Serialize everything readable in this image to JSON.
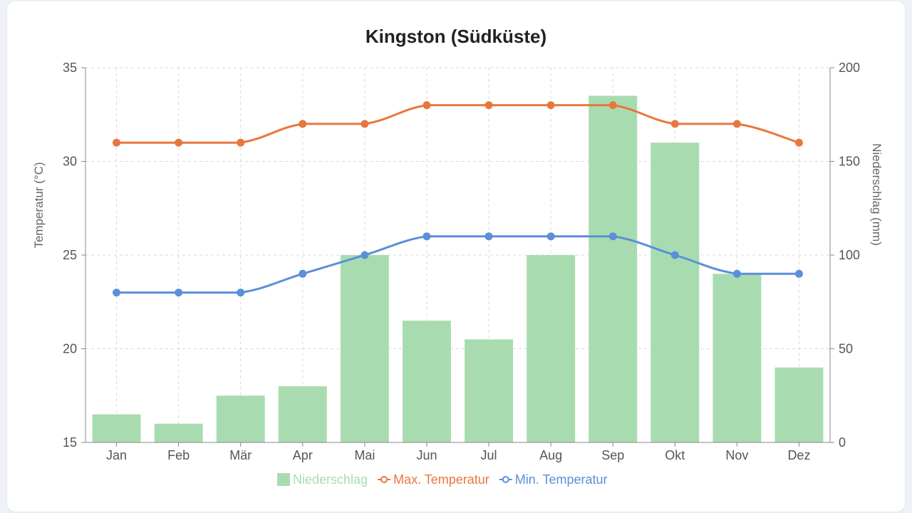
{
  "chart_data": {
    "type": "bar+line",
    "title": "Kingston (Südküste)",
    "categories": [
      "Jan",
      "Feb",
      "Mär",
      "Apr",
      "Mai",
      "Jun",
      "Jul",
      "Aug",
      "Sep",
      "Okt",
      "Nov",
      "Dez"
    ],
    "y_left": {
      "label": "Temperatur (°C)",
      "range": [
        15,
        35
      ],
      "ticks": [
        15,
        20,
        25,
        30,
        35
      ]
    },
    "y_right": {
      "label": "Niederschlag (mm)",
      "range": [
        0,
        200
      ],
      "ticks": [
        0,
        50,
        100,
        150,
        200
      ]
    },
    "grid": true,
    "legend_position": "bottom",
    "series": [
      {
        "name": "Niederschlag",
        "type": "bar",
        "axis": "right",
        "color": "#a8dcb0",
        "values": [
          15,
          10,
          25,
          30,
          100,
          65,
          55,
          100,
          185,
          160,
          90,
          40
        ]
      },
      {
        "name": "Max. Temperatur",
        "type": "line",
        "axis": "left",
        "color": "#e8773f",
        "values": [
          31,
          31,
          31,
          32,
          32,
          33,
          33,
          33,
          33,
          32,
          32,
          31
        ]
      },
      {
        "name": "Min. Temperatur",
        "type": "line",
        "axis": "left",
        "color": "#5b8fd9",
        "values": [
          23,
          23,
          23,
          24,
          25,
          26,
          26,
          26,
          26,
          25,
          24,
          24
        ]
      }
    ]
  }
}
